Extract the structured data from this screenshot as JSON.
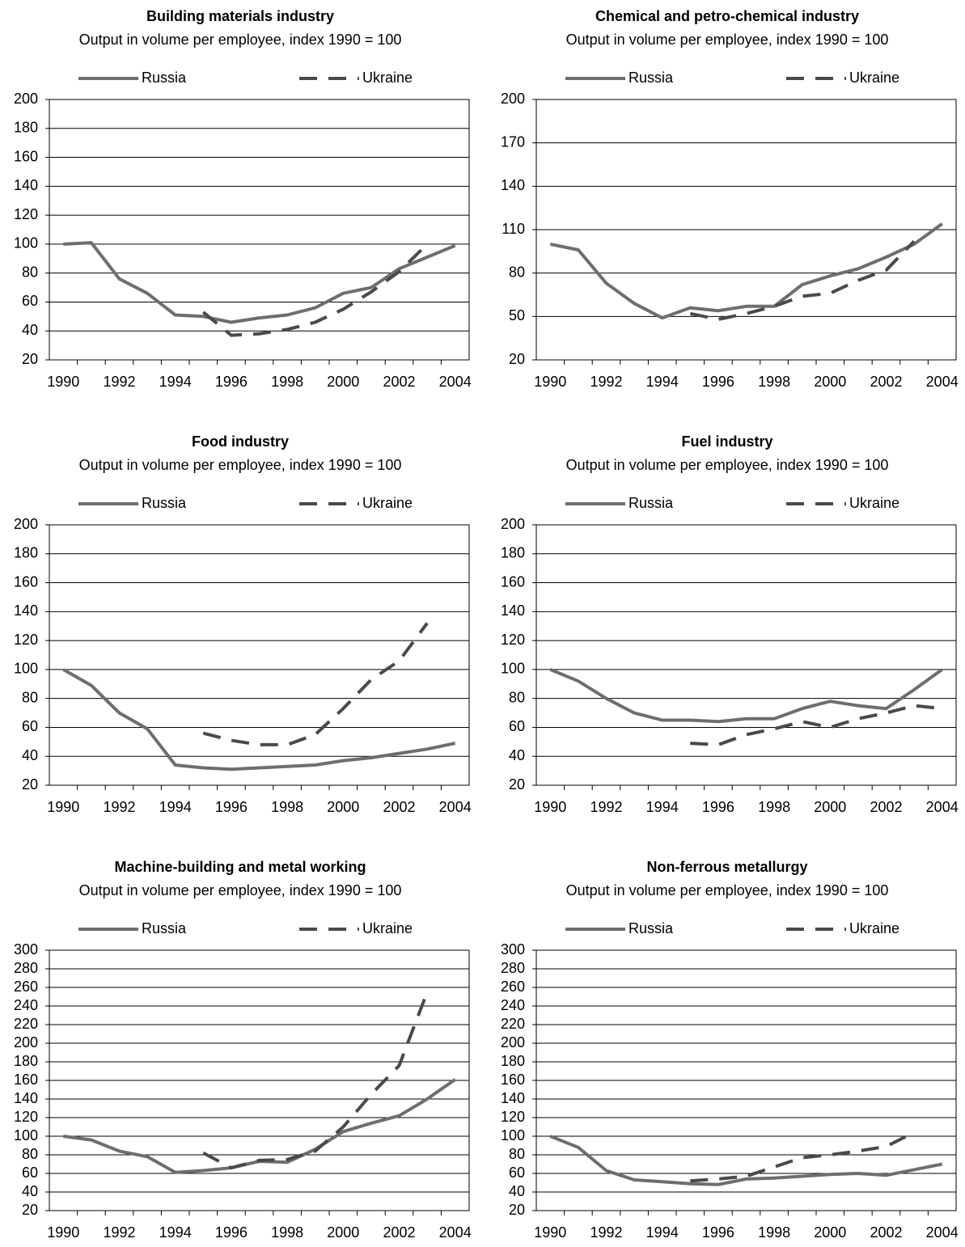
{
  "chart_data": [
    {
      "type": "line",
      "title": "Building materials industry",
      "subtitle": "Output in volume per employee, index 1990 = 100",
      "categories": [
        "1990",
        null,
        "1992",
        null,
        "1994",
        null,
        "1996",
        null,
        "1998",
        null,
        "2000",
        null,
        "2002",
        null,
        "2004"
      ],
      "series": [
        {
          "name": "Russia",
          "color": "#6e6e6e",
          "line_style": "solid",
          "values": [
            100,
            101,
            76,
            66,
            51,
            50,
            46,
            49,
            51,
            56,
            66,
            70,
            83,
            91,
            99
          ]
        },
        {
          "name": "Ukraine",
          "color": "#4a4a4a",
          "line_style": "dashed",
          "values": [
            null,
            null,
            null,
            null,
            null,
            53,
            37,
            38,
            41,
            46,
            55,
            67,
            81,
            100,
            null
          ]
        }
      ],
      "ylim": [
        20,
        200
      ],
      "yticks": [
        20,
        40,
        60,
        80,
        100,
        120,
        140,
        160,
        180,
        200
      ],
      "grid": true
    },
    {
      "type": "line",
      "title": "Chemical and petro-chemical industry",
      "subtitle": "Output in volume per employee, index 1990 = 100",
      "categories": [
        "1990",
        null,
        "1992",
        null,
        "1994",
        null,
        "1996",
        null,
        "1998",
        null,
        "2000",
        null,
        "2002",
        null,
        "2004"
      ],
      "series": [
        {
          "name": "Russia",
          "color": "#6e6e6e",
          "line_style": "solid",
          "values": [
            100,
            96,
            73,
            59,
            49,
            56,
            54,
            57,
            57,
            72,
            78,
            83,
            91,
            100,
            114
          ]
        },
        {
          "name": "Ukraine",
          "color": "#4a4a4a",
          "line_style": "dashed",
          "values": [
            null,
            null,
            null,
            null,
            null,
            52,
            48,
            52,
            57,
            64,
            66,
            75,
            82,
            102,
            null
          ]
        }
      ],
      "ylim": [
        20,
        200
      ],
      "yticks": [
        20,
        50,
        80,
        110,
        140,
        170,
        200
      ],
      "grid": true
    },
    {
      "type": "line",
      "title": "Food industry",
      "subtitle": "Output in volume per employee, index 1990 = 100",
      "categories": [
        "1990",
        null,
        "1992",
        null,
        "1994",
        null,
        "1996",
        null,
        "1998",
        null,
        "2000",
        null,
        "2002",
        null,
        "2004"
      ],
      "series": [
        {
          "name": "Russia",
          "color": "#6e6e6e",
          "line_style": "solid",
          "values": [
            100,
            89,
            70,
            59,
            34,
            32,
            31,
            32,
            33,
            34,
            37,
            39,
            42,
            45,
            49
          ]
        },
        {
          "name": "Ukraine",
          "color": "#4a4a4a",
          "line_style": "dashed",
          "values": [
            null,
            null,
            null,
            null,
            null,
            56,
            51,
            48,
            48,
            55,
            73,
            93,
            106,
            132,
            null
          ]
        }
      ],
      "ylim": [
        20,
        200
      ],
      "yticks": [
        20,
        40,
        60,
        80,
        100,
        120,
        140,
        160,
        180,
        200
      ],
      "grid": true
    },
    {
      "type": "line",
      "title": "Fuel industry",
      "subtitle": "Output in volume per employee, index 1990 = 100",
      "categories": [
        "1990",
        null,
        "1992",
        null,
        "1994",
        null,
        "1996",
        null,
        "1998",
        null,
        "2000",
        null,
        "2002",
        null,
        "2004"
      ],
      "series": [
        {
          "name": "Russia",
          "color": "#6e6e6e",
          "line_style": "solid",
          "values": [
            100,
            92,
            80,
            70,
            65,
            65,
            64,
            66,
            66,
            73,
            78,
            75,
            73,
            86,
            100
          ]
        },
        {
          "name": "Ukraine",
          "color": "#4a4a4a",
          "line_style": "dashed",
          "values": [
            null,
            null,
            null,
            null,
            null,
            49,
            48,
            55,
            59,
            64,
            60,
            66,
            70,
            75,
            73
          ]
        }
      ],
      "ylim": [
        20,
        200
      ],
      "yticks": [
        20,
        40,
        60,
        80,
        100,
        120,
        140,
        160,
        180,
        200
      ],
      "grid": true
    },
    {
      "type": "line",
      "title": "Machine-building and metal working",
      "subtitle": "Output in volume per employee, index 1990 = 100",
      "categories": [
        "1990",
        null,
        "1992",
        null,
        "1994",
        null,
        "1996",
        null,
        "1998",
        null,
        "2000",
        null,
        "2002",
        null,
        "2004"
      ],
      "series": [
        {
          "name": "Russia",
          "color": "#6e6e6e",
          "line_style": "solid",
          "values": [
            100,
            96,
            84,
            78,
            61,
            63,
            66,
            73,
            72,
            86,
            105,
            114,
            122,
            140,
            161
          ]
        },
        {
          "name": "Ukraine",
          "color": "#4a4a4a",
          "line_style": "dashed",
          "values": [
            null,
            null,
            null,
            null,
            null,
            82,
            66,
            74,
            75,
            84,
            110,
            145,
            176,
            255,
            null
          ]
        }
      ],
      "ylim": [
        20,
        300
      ],
      "yticks": [
        20,
        40,
        60,
        80,
        100,
        120,
        140,
        160,
        180,
        200,
        220,
        240,
        260,
        280,
        300
      ],
      "grid": true
    },
    {
      "type": "line",
      "title": "Non-ferrous metallurgy",
      "subtitle": "Output in volume per employee, index 1990 = 100",
      "categories": [
        "1990",
        null,
        "1992",
        null,
        "1994",
        null,
        "1996",
        null,
        "1998",
        null,
        "2000",
        null,
        "2002",
        null,
        "2004"
      ],
      "series": [
        {
          "name": "Russia",
          "color": "#6e6e6e",
          "line_style": "solid",
          "values": [
            100,
            88,
            63,
            53,
            51,
            49,
            48,
            54,
            55,
            57,
            59,
            60,
            58,
            64,
            70
          ]
        },
        {
          "name": "Ukraine",
          "color": "#4a4a4a",
          "line_style": "dashed",
          "values": [
            null,
            null,
            null,
            null,
            null,
            52,
            54,
            57,
            67,
            77,
            80,
            84,
            89,
            104,
            null
          ]
        }
      ],
      "ylim": [
        20,
        300
      ],
      "yticks": [
        20,
        40,
        60,
        80,
        100,
        120,
        140,
        160,
        180,
        200,
        220,
        240,
        260,
        280,
        300
      ],
      "grid": true
    }
  ]
}
